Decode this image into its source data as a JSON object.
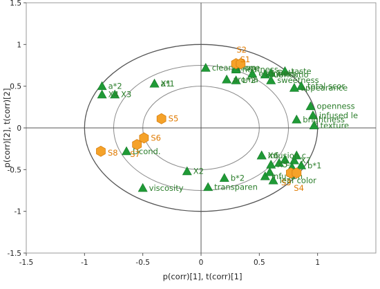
{
  "chart_data": {
    "type": "scatter",
    "title": "",
    "xlabel": "p(corr)[1], t(corr)[1]",
    "ylabel": "p(corr)[2], t(corr)[2]",
    "xlim": [
      -1.5,
      1.5
    ],
    "ylim": [
      -1.5,
      1.5
    ],
    "xticks": [
      "-1.5",
      "-1",
      "-0.5",
      "0",
      "0.5",
      "1"
    ],
    "yticks": [
      "1.5",
      "1",
      "0.5",
      "0",
      "-0.5",
      "-1",
      "-1.5"
    ],
    "grid": false,
    "ellipses": [
      {
        "rx": 1.0,
        "ry": 1.0
      },
      {
        "rx": 0.75,
        "ry": 0.75
      },
      {
        "rx": 0.5,
        "ry": 0.5
      }
    ],
    "colors": {
      "variables": "#1f9a36",
      "observations": "#f5a229",
      "observation_stroke": "#d77f10"
    },
    "variables": [
      {
        "label": "a*2",
        "x": -0.85,
        "y": 0.5
      },
      {
        "label": "X4",
        "x": -0.85,
        "y": 0.4
      },
      {
        "label": "X3",
        "x": -0.74,
        "y": 0.4
      },
      {
        "label": "a*1",
        "x": -0.4,
        "y": 0.53
      },
      {
        "label": "X1",
        "x": -0.4,
        "y": 0.53
      },
      {
        "label": "clean arom",
        "x": 0.04,
        "y": 0.72
      },
      {
        "label": "aroma",
        "x": 0.22,
        "y": 0.58
      },
      {
        "label": "rope",
        "x": 0.3,
        "y": 0.72
      },
      {
        "label": "heatness",
        "x": 0.3,
        "y": 0.7
      },
      {
        "label": "L*2",
        "x": 0.3,
        "y": 0.57
      },
      {
        "label": "evenness",
        "x": 0.44,
        "y": 0.65
      },
      {
        "label": "lubricatio",
        "x": 0.55,
        "y": 0.64
      },
      {
        "label": "DoH",
        "x": 0.6,
        "y": 0.66
      },
      {
        "label": "taste",
        "x": 0.72,
        "y": 0.68
      },
      {
        "label": "sweetness",
        "x": 0.6,
        "y": 0.57
      },
      {
        "label": "total scor",
        "x": 0.86,
        "y": 0.5
      },
      {
        "label": "appearance",
        "x": 0.8,
        "y": 0.48
      },
      {
        "label": "openness",
        "x": 0.94,
        "y": 0.26
      },
      {
        "label": "infused le",
        "x": 0.96,
        "y": 0.15
      },
      {
        "label": "brightness",
        "x": 0.82,
        "y": 0.1
      },
      {
        "label": "texture",
        "x": 0.97,
        "y": 0.03
      },
      {
        "label": "Dcond.",
        "x": -0.64,
        "y": -0.28
      },
      {
        "label": "X2",
        "x": -0.12,
        "y": -0.52
      },
      {
        "label": "transparen",
        "x": 0.06,
        "y": -0.71
      },
      {
        "label": "b*2",
        "x": 0.2,
        "y": -0.6
      },
      {
        "label": "viscosity",
        "x": -0.5,
        "y": -0.72
      },
      {
        "label": "infusion c",
        "x": 0.52,
        "y": -0.33
      },
      {
        "label": "X6",
        "x": 0.52,
        "y": -0.33
      },
      {
        "label": "infusion",
        "x": 0.55,
        "y": -0.58
      },
      {
        "label": "X5",
        "x": 0.6,
        "y": -0.44
      },
      {
        "label": "L",
        "x": 0.67,
        "y": -0.42
      },
      {
        "label": "X7",
        "x": 0.8,
        "y": -0.39
      },
      {
        "label": "b*1",
        "x": 0.86,
        "y": -0.45
      },
      {
        "label": "leaf color",
        "x": 0.62,
        "y": -0.63
      },
      {
        "label": "",
        "x": 0.72,
        "y": -0.38
      },
      {
        "label": "",
        "x": 0.78,
        "y": -0.47
      },
      {
        "label": "",
        "x": 0.82,
        "y": -0.33
      },
      {
        "label": "",
        "x": 0.59,
        "y": -0.53
      }
    ],
    "observations": [
      {
        "label": "S1",
        "x": 0.3,
        "y": 0.77
      },
      {
        "label": "S2",
        "x": 0.34,
        "y": 0.77
      },
      {
        "label": "S5",
        "x": -0.34,
        "y": 0.11
      },
      {
        "label": "S6",
        "x": -0.49,
        "y": -0.12
      },
      {
        "label": "S7",
        "x": -0.55,
        "y": -0.2
      },
      {
        "label": "S8",
        "x": -0.86,
        "y": -0.28
      },
      {
        "label": "S3",
        "x": 0.77,
        "y": -0.54
      },
      {
        "label": "S4",
        "x": 0.82,
        "y": -0.54
      }
    ]
  }
}
